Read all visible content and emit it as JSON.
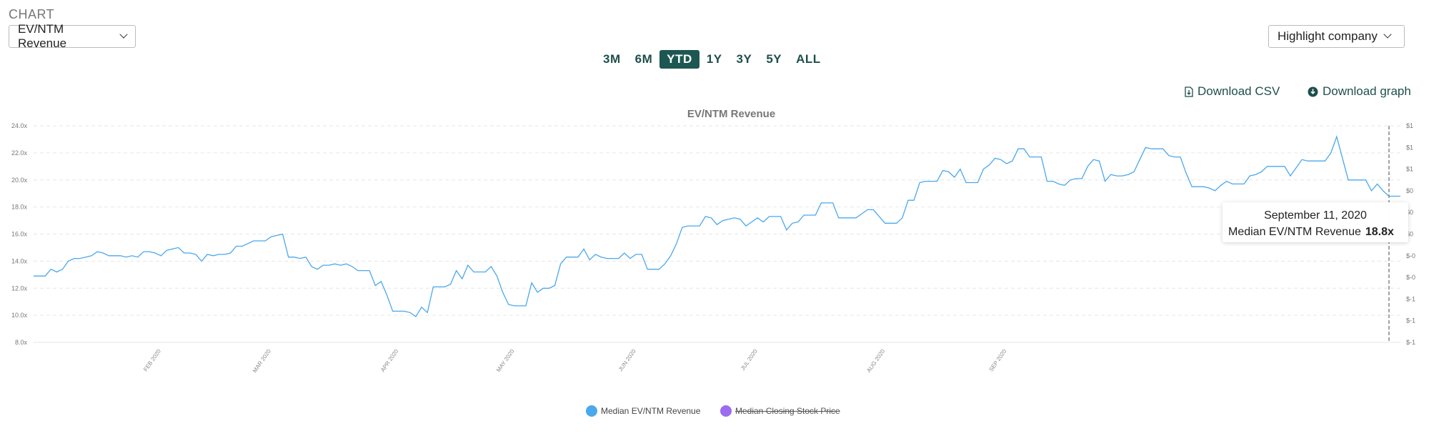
{
  "header": {
    "section_label": "CHART",
    "metric_select": "EV/NTM Revenue",
    "highlight_select": "Highlight company",
    "ranges": [
      "3M",
      "6M",
      "YTD",
      "1Y",
      "3Y",
      "5Y",
      "ALL"
    ],
    "active_range": "YTD",
    "download_csv": "Download CSV",
    "download_graph": "Download graph"
  },
  "colors": {
    "accent": "#1e5752",
    "series_ev": "#4aa8ec",
    "series_price": "#9b6cf0",
    "grid": "#e6e6e6"
  },
  "tooltip": {
    "date": "September 11, 2020",
    "label": "Median EV/NTM Revenue",
    "value": "18.8x"
  },
  "chart_data": {
    "type": "line",
    "title": "EV/NTM Revenue",
    "xlabel": "",
    "ylabel": "",
    "ylim": [
      8,
      24
    ],
    "yticks": [
      "24.0x",
      "22.0x",
      "20.0x",
      "18.0x",
      "16.0x",
      "14.0x",
      "12.0x",
      "10.0x",
      "8.0x"
    ],
    "y2ticks": [
      "$1",
      "$1",
      "$1",
      "$0",
      "$0",
      "$0",
      "$-0",
      "$-0",
      "$-1",
      "$-1",
      "$-1"
    ],
    "xticks": [
      {
        "label": "FEB 2020",
        "i": 22
      },
      {
        "label": "MAR 2020",
        "i": 41
      },
      {
        "label": "APR 2020",
        "i": 63
      },
      {
        "label": "MAY 2020",
        "i": 83
      },
      {
        "label": "JUN 2020",
        "i": 104
      },
      {
        "label": "JUL 2020",
        "i": 125
      },
      {
        "label": "AUG 2020",
        "i": 147
      },
      {
        "label": "SEP 2020",
        "i": 168
      }
    ],
    "legend_position": "bottom",
    "grid": true,
    "series": [
      {
        "name": "Median EV/NTM Revenue",
        "visible": true,
        "values": [
          12.9,
          12.9,
          12.9,
          13.4,
          13.2,
          13.4,
          14.0,
          14.2,
          14.2,
          14.3,
          14.4,
          14.7,
          14.6,
          14.4,
          14.4,
          14.4,
          14.3,
          14.4,
          14.3,
          14.7,
          14.7,
          14.6,
          14.4,
          14.8,
          14.9,
          15.0,
          14.6,
          14.6,
          14.5,
          14.0,
          14.5,
          14.4,
          14.5,
          14.5,
          14.6,
          15.1,
          15.1,
          15.3,
          15.5,
          15.5,
          15.5,
          15.8,
          15.9,
          16.0,
          14.3,
          14.3,
          14.2,
          14.3,
          13.6,
          13.4,
          13.7,
          13.7,
          13.8,
          13.7,
          13.8,
          13.6,
          13.3,
          13.3,
          13.3,
          12.2,
          12.5,
          11.5,
          10.3,
          10.3,
          10.3,
          10.2,
          9.9,
          10.6,
          10.2,
          12.1,
          12.1,
          12.1,
          12.3,
          13.3,
          12.7,
          13.7,
          13.2,
          13.2,
          13.2,
          13.6,
          12.9,
          11.7,
          10.8,
          10.7,
          10.7,
          10.7,
          12.4,
          11.7,
          12.0,
          12.0,
          12.2,
          13.8,
          14.3,
          14.3,
          14.3,
          14.9,
          14.1,
          14.5,
          14.3,
          14.2,
          14.2,
          14.2,
          14.6,
          14.2,
          14.5,
          14.5,
          13.4,
          13.4,
          13.4,
          13.8,
          14.4,
          15.3,
          16.5,
          16.6,
          16.6,
          16.6,
          17.3,
          17.2,
          16.7,
          17.0,
          17.1,
          17.2,
          17.1,
          16.6,
          16.9,
          17.2,
          16.9,
          17.3,
          17.3,
          17.3,
          16.3,
          16.8,
          16.9,
          17.4,
          17.4,
          17.4,
          18.3,
          18.3,
          18.3,
          17.2,
          17.2,
          17.2,
          17.2,
          17.5,
          17.8,
          17.8,
          17.3,
          16.8,
          16.8,
          16.8,
          17.2,
          18.5,
          18.5,
          19.8,
          19.9,
          19.9,
          19.9,
          20.7,
          20.6,
          20.2,
          20.8,
          19.8,
          19.8,
          19.8,
          20.8,
          21.1,
          21.6,
          21.5,
          21.2,
          21.4,
          22.3,
          22.3,
          21.7,
          21.7,
          21.7,
          19.9,
          19.9,
          19.7,
          19.6,
          20.0,
          20.1,
          20.1,
          21.0,
          21.5,
          21.4,
          19.9,
          20.4,
          20.3,
          20.3,
          20.4,
          20.6,
          21.5,
          22.4,
          22.3,
          22.3,
          22.3,
          21.8,
          21.7,
          21.7,
          20.5,
          19.5,
          19.5,
          19.5,
          19.4,
          19.2,
          19.6,
          19.9,
          19.7,
          19.7,
          19.7,
          20.3,
          20.4,
          20.6,
          21.0,
          21.0,
          21.0,
          21.0,
          20.3,
          20.9,
          21.5,
          21.4,
          21.4,
          21.4,
          21.4,
          22.0,
          23.2,
          21.6,
          20.0,
          20.0,
          20.0,
          20.0,
          19.2,
          19.7,
          19.2,
          18.8,
          18.8,
          18.8
        ]
      },
      {
        "name": "Median Closing Stock Price",
        "visible": false,
        "values": []
      }
    ]
  }
}
